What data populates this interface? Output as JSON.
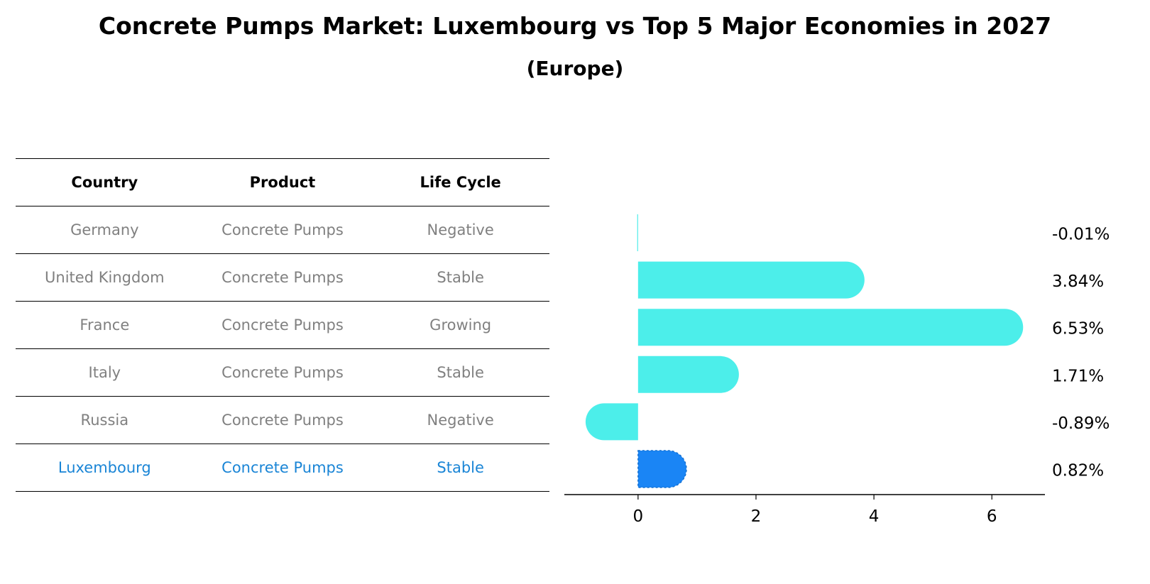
{
  "header": {
    "title": "Concrete Pumps Market: Luxembourg vs Top 5 Major Economies in 2027",
    "subtitle": "(Europe)"
  },
  "table": {
    "columns": [
      "Country",
      "Product",
      "Life Cycle"
    ],
    "rows": [
      {
        "country": "Germany",
        "product": "Concrete Pumps",
        "life_cycle": "Negative"
      },
      {
        "country": "United Kingdom",
        "product": "Concrete Pumps",
        "life_cycle": "Stable"
      },
      {
        "country": "France",
        "product": "Concrete Pumps",
        "life_cycle": "Growing"
      },
      {
        "country": "Italy",
        "product": "Concrete Pumps",
        "life_cycle": "Stable"
      },
      {
        "country": "Russia",
        "product": "Concrete Pumps",
        "life_cycle": "Negative"
      },
      {
        "country": "Luxembourg",
        "product": "Concrete Pumps",
        "life_cycle": "Stable"
      }
    ]
  },
  "colors": {
    "bar": "#4ceeea",
    "highlight_bar": "#1a85f5",
    "highlight_text": "#1a85d6",
    "muted_text": "#808080"
  },
  "chart_data": {
    "type": "bar",
    "orientation": "horizontal",
    "categories": [
      "Germany",
      "United Kingdom",
      "France",
      "Italy",
      "Russia",
      "Luxembourg"
    ],
    "values": [
      -0.01,
      3.84,
      6.53,
      1.71,
      -0.89,
      0.82
    ],
    "value_labels": [
      "-0.01%",
      "3.84%",
      "6.53%",
      "1.71%",
      "-0.89%",
      "0.82%"
    ],
    "highlight": "Luxembourg",
    "xlim": [
      -1.25,
      6.9
    ],
    "xticks": [
      0,
      2,
      4,
      6
    ],
    "xtick_labels": [
      "0",
      "2",
      "4",
      "6"
    ],
    "xlabel": "",
    "ylabel": "",
    "grid": false
  }
}
